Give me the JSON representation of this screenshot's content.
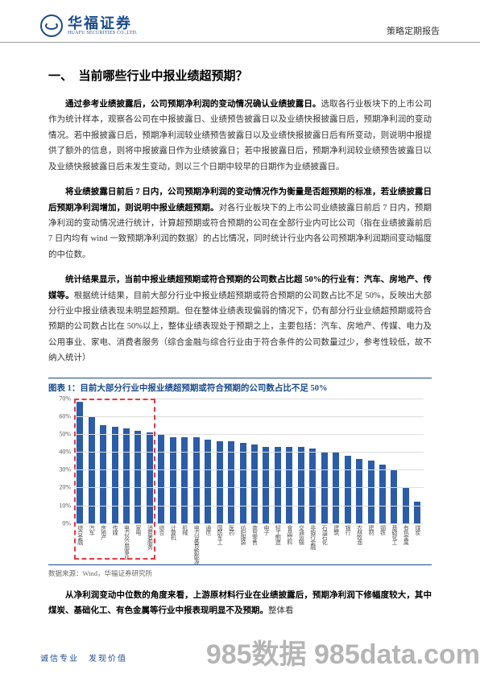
{
  "header": {
    "logo_cn": "华福证券",
    "logo_en": "HUAFU SECURITIES CO.,LTD.",
    "report_type": "策略定期报告"
  },
  "section": {
    "title": "一、　当前哪些行业中报业绩超预期？",
    "para1_bold": "通过参考业绩披露后，公司预期净利润的变动情况确认业绩披露日。",
    "para1_rest": "选取各行业板块下的上市公司作为统计样本，观察各公司在中报披露日、业绩预告披露日以及业绩快报披露日后，预期净利润的变动情况。若中报披露日后，预期净利润较业绩预告披露日以及业绩快报披露日后有所变动，则说明中报提供了额外的信息，则将中报披露日作为业绩披露日；若中报披露日后，预期净利润较业绩预告披露日以及业绩快报披露日后未发生变动，则以三个日期中较早的日期作为业绩披露日。",
    "para2_bold": "将业绩披露日前后 7 日内，公司预期净利润的变动情况作为衡量是否超预期的标准，若业绩披露日后预期净利润增加，则说明中报业绩超预期。",
    "para2_rest": "对各行业板块下的上市公司业绩披露日前后 7 日内，预期净利润的变动情况进行统计，计算超预期或符合预期的公司在全部行业内可比公司（指在业绩披露前后 7 日内均有 wind 一致预期净利润的数据）的占比情况，同时统计行业内各公司预期净利润期间变动幅度的中位数。",
    "para3_bold": "统计结果显示，当前中报业绩超预期或符合预期的公司数占比超 50%的行业有：汽车、房地产、传媒等。",
    "para3_rest": "根据统计结果，目前大部分行业中报业绩超预期或符合预期的公司数占比不足 50%，反映出大部分行业中报业绩表现未明显超预期。但在整体业绩表现偏弱的情况下，仍有部分行业业绩超预期或符合预期的公司数占比在 50%以上，整体业绩表现处于预期之上，主要包括：汽车、房地产、传媒、电力及公用事业、家电、消费者服务（综合金融与综合行业由于符合条件的公司数量过少，参考性较低，故不纳入统计）",
    "para4_bold": "从净利润变动中位数的角度来看，上游原材料行业在业绩披露后，预期净利润下修幅度较大，其中煤炭、基础化工、有色金属等行业中报表现明显不及预期。",
    "para4_rest": "整体看"
  },
  "chart": {
    "title_prefix": "图表 1：",
    "title": "目前大部分行业中报业绩超预期或符合预期的公司数占比不足 50%",
    "type": "bar",
    "ylim": [
      0,
      70
    ],
    "ytick_step": 10,
    "y_suffix": "%",
    "bar_color": "#2b5ca8",
    "grid_color": "#ddd",
    "highlight_color": "#e63946",
    "background_color": "#ffffff",
    "categories": [
      "综合金融",
      "汽车",
      "房地产",
      "传媒",
      "电力及公用事业",
      "家电",
      "消费者服务",
      "综合",
      "计算机",
      "机械",
      "电力设备及新能源",
      "通信",
      "国防军工",
      "医药",
      "纺织服装",
      "商贸零售",
      "电子",
      "轻工制造",
      "食品饮料",
      "交通运输",
      "非银行金融",
      "石油石化",
      "建筑",
      "银行",
      "农林牧渔",
      "建材",
      "钢铁",
      "基础化工",
      "有色金属",
      "煤炭"
    ],
    "values": [
      68,
      60,
      55,
      54,
      53,
      52,
      51,
      50,
      48,
      48,
      48,
      47,
      46,
      46,
      45,
      44,
      43,
      43,
      43,
      43,
      42,
      40,
      40,
      38,
      36,
      35,
      33,
      30,
      20,
      12
    ],
    "highlight_start_idx": 0,
    "highlight_end_idx": 6,
    "source": "数据来源：Wind，华福证券研究所"
  },
  "footer": {
    "slogan": "诚信专业　发现价值",
    "watermark": "985数据 985data.com"
  }
}
